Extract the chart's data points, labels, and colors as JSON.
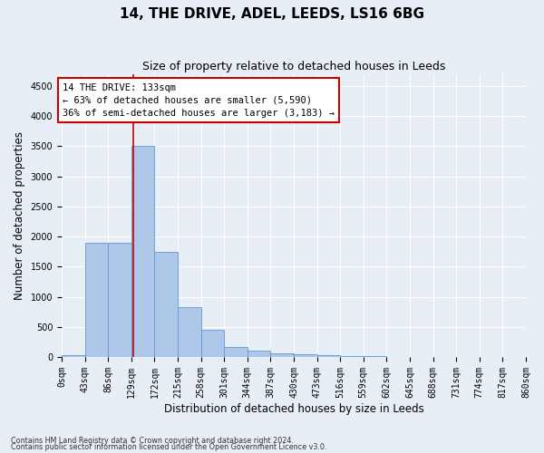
{
  "title": "14, THE DRIVE, ADEL, LEEDS, LS16 6BG",
  "subtitle": "Size of property relative to detached houses in Leeds",
  "xlabel": "Distribution of detached houses by size in Leeds",
  "ylabel": "Number of detached properties",
  "bin_labels": [
    "0sqm",
    "43sqm",
    "86sqm",
    "129sqm",
    "172sqm",
    "215sqm",
    "258sqm",
    "301sqm",
    "344sqm",
    "387sqm",
    "430sqm",
    "473sqm",
    "516sqm",
    "559sqm",
    "602sqm",
    "645sqm",
    "688sqm",
    "731sqm",
    "774sqm",
    "817sqm",
    "860sqm"
  ],
  "bin_edges": [
    0,
    43,
    86,
    129,
    172,
    215,
    258,
    301,
    344,
    387,
    430,
    473,
    516,
    559,
    602,
    645,
    688,
    731,
    774,
    817,
    860
  ],
  "bar_values": [
    30,
    1900,
    1900,
    3500,
    1750,
    830,
    450,
    170,
    100,
    60,
    40,
    35,
    15,
    8,
    5,
    3,
    2,
    1,
    1,
    0
  ],
  "bar_color": "#aec6e8",
  "bar_edgecolor": "#5b9bd5",
  "property_line_x": 133,
  "property_line_color": "#cc0000",
  "annotation_line1": "14 THE DRIVE: 133sqm",
  "annotation_line2": "← 63% of detached houses are smaller (5,590)",
  "annotation_line3": "36% of semi-detached houses are larger (3,183) →",
  "annotation_box_color": "#ffffff",
  "annotation_box_edgecolor": "#cc0000",
  "ylim": [
    0,
    4700
  ],
  "yticks": [
    0,
    500,
    1000,
    1500,
    2000,
    2500,
    3000,
    3500,
    4000,
    4500
  ],
  "background_color": "#e8eef5",
  "plot_background": "#e8eef5",
  "grid_color": "#ffffff",
  "footnote1": "Contains HM Land Registry data © Crown copyright and database right 2024.",
  "footnote2": "Contains public sector information licensed under the Open Government Licence v3.0.",
  "title_fontsize": 11,
  "subtitle_fontsize": 9,
  "axis_label_fontsize": 8.5,
  "tick_fontsize": 7,
  "annotation_fontsize": 7.5
}
